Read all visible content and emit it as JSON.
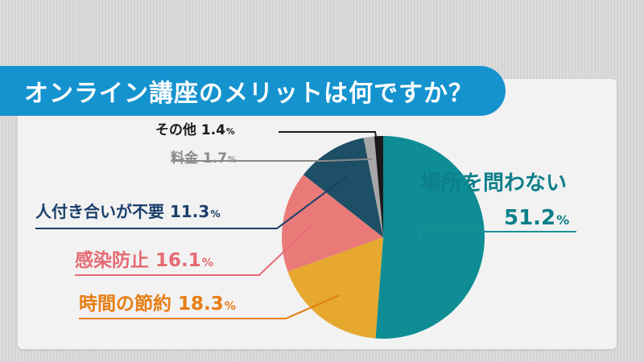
{
  "title": "オンライン講座のメリットは何ですか？",
  "chart_data": {
    "type": "pie",
    "title": "オンライン講座のメリットは何ですか？",
    "unit": "%",
    "slices": [
      {
        "label": "場所を問わない",
        "value": 51.2,
        "value_text": "51.2",
        "color": "#0e8d95",
        "label_color": "#0d7f8a",
        "line_color": "#1a8f98"
      },
      {
        "label": "時間の節約",
        "value": 18.3,
        "value_text": "18.3",
        "color": "#e6a82e",
        "label_color": "#e87d12",
        "line_color": "#e87d12"
      },
      {
        "label": "感染防止",
        "value": 16.1,
        "value_text": "16.1",
        "color": "#ea7a78",
        "label_color": "#e56a72",
        "line_color": "#e56a72"
      },
      {
        "label": "人付き合いが不要",
        "value": 11.3,
        "value_text": "11.3",
        "color": "#1d4f66",
        "label_color": "#1a3f6a",
        "line_color": "#1a3f6a"
      },
      {
        "label": "料金",
        "value": 1.7,
        "value_text": "1.7",
        "color": "#a7a7a7",
        "label_color": "#8a8a8a",
        "line_color": "#8a8a8a"
      },
      {
        "label": "その他",
        "value": 1.4,
        "value_text": "1.4",
        "color": "#1a1a1a",
        "label_color": "#1a1a1a",
        "line_color": "#1a1a1a"
      }
    ],
    "start": "12 o'clock",
    "direction": "clockwise"
  },
  "labels": {
    "place": {
      "name": "場所を問わない",
      "value": "51.2",
      "unit": "%"
    },
    "time": {
      "name": "時間の節約",
      "value": "18.3",
      "unit": "%"
    },
    "infect": {
      "name": "感染防止",
      "value": "16.1",
      "unit": "%"
    },
    "social": {
      "name": "人付き合いが不要",
      "value": "11.3",
      "unit": "%"
    },
    "fee": {
      "name": "料金",
      "value": "1.7",
      "unit": "%"
    },
    "other": {
      "name": "その他",
      "value": "1.4",
      "unit": "%"
    }
  }
}
